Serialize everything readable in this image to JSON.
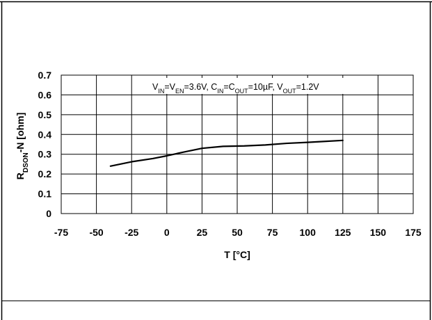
{
  "chart_data": {
    "type": "line",
    "annotation": {
      "parts": [
        {
          "t": "V",
          "s": "n"
        },
        {
          "t": "IN",
          "s": "sub"
        },
        {
          "t": "=V",
          "s": "n"
        },
        {
          "t": "EN",
          "s": "sub"
        },
        {
          "t": "=3.6V, C",
          "s": "n"
        },
        {
          "t": "IN",
          "s": "sub"
        },
        {
          "t": "=C",
          "s": "n"
        },
        {
          "t": "OUT",
          "s": "sub"
        },
        {
          "t": "=10µF, V",
          "s": "n"
        },
        {
          "t": "OUT",
          "s": "sub"
        },
        {
          "t": "=1.2V",
          "s": "n"
        }
      ]
    },
    "xlabel": "T [°C]",
    "ylabel": {
      "main": "R",
      "sub": "DSON",
      "suffix": "-N [ohm]"
    },
    "xlim": [
      -75,
      175
    ],
    "ylim": [
      0,
      0.7
    ],
    "x_ticks": [
      "-75",
      "-50",
      "-25",
      "0",
      "25",
      "50",
      "75",
      "100",
      "125",
      "150",
      "175"
    ],
    "y_ticks": [
      "0",
      "0.1",
      "0.2",
      "0.3",
      "0.4",
      "0.5",
      "0.6",
      "0.7"
    ],
    "grid": true,
    "series": [
      {
        "color": "#000000",
        "x": [
          -40,
          -25,
          -10,
          0,
          10,
          25,
          40,
          55,
          70,
          85,
          100,
          110,
          125
        ],
        "y": [
          0.24,
          0.262,
          0.278,
          0.292,
          0.308,
          0.33,
          0.34,
          0.342,
          0.347,
          0.355,
          0.36,
          0.364,
          0.37
        ]
      }
    ]
  }
}
